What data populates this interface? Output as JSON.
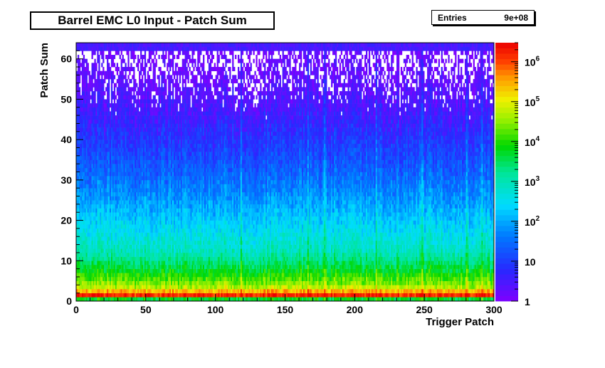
{
  "chart_data": {
    "type": "heatmap",
    "title": "Barrel EMC L0 Input - Patch Sum",
    "xlabel": "Trigger Patch",
    "ylabel": "Patch Sum",
    "xlim": [
      0,
      300
    ],
    "ylim": [
      0,
      64
    ],
    "x_ticks": [
      0,
      50,
      100,
      150,
      200,
      250,
      300
    ],
    "y_ticks": [
      0,
      10,
      20,
      30,
      40,
      50,
      60
    ],
    "z_scale": "log",
    "zlim": [
      1,
      3000000
    ],
    "z_tick_labels": [
      "1",
      "10",
      "10^2",
      "10^3",
      "10^4",
      "10^5",
      "10^6"
    ],
    "entries_label": "Entries",
    "entries_value": "9e+08",
    "density_profile": [
      {
        "patch_sum": 0,
        "counts": 10
      },
      {
        "patch_sum": 1,
        "counts": 3000000
      },
      {
        "patch_sum": 2,
        "counts": 1000000
      },
      {
        "patch_sum": 3,
        "counts": 80000
      },
      {
        "patch_sum": 5,
        "counts": 20000
      },
      {
        "patch_sum": 8,
        "counts": 5000
      },
      {
        "patch_sum": 12,
        "counts": 1000
      },
      {
        "patch_sum": 18,
        "counts": 300
      },
      {
        "patch_sum": 25,
        "counts": 80
      },
      {
        "patch_sum": 32,
        "counts": 25
      },
      {
        "patch_sum": 40,
        "counts": 8
      },
      {
        "patch_sum": 48,
        "counts": 3
      },
      {
        "patch_sum": 55,
        "counts": 1.5
      },
      {
        "patch_sum": 62,
        "counts": 1
      },
      {
        "patch_sum": 63,
        "counts": 3
      }
    ],
    "bright_patches": [
      118,
      166,
      178,
      215,
      248,
      280,
      291
    ]
  }
}
